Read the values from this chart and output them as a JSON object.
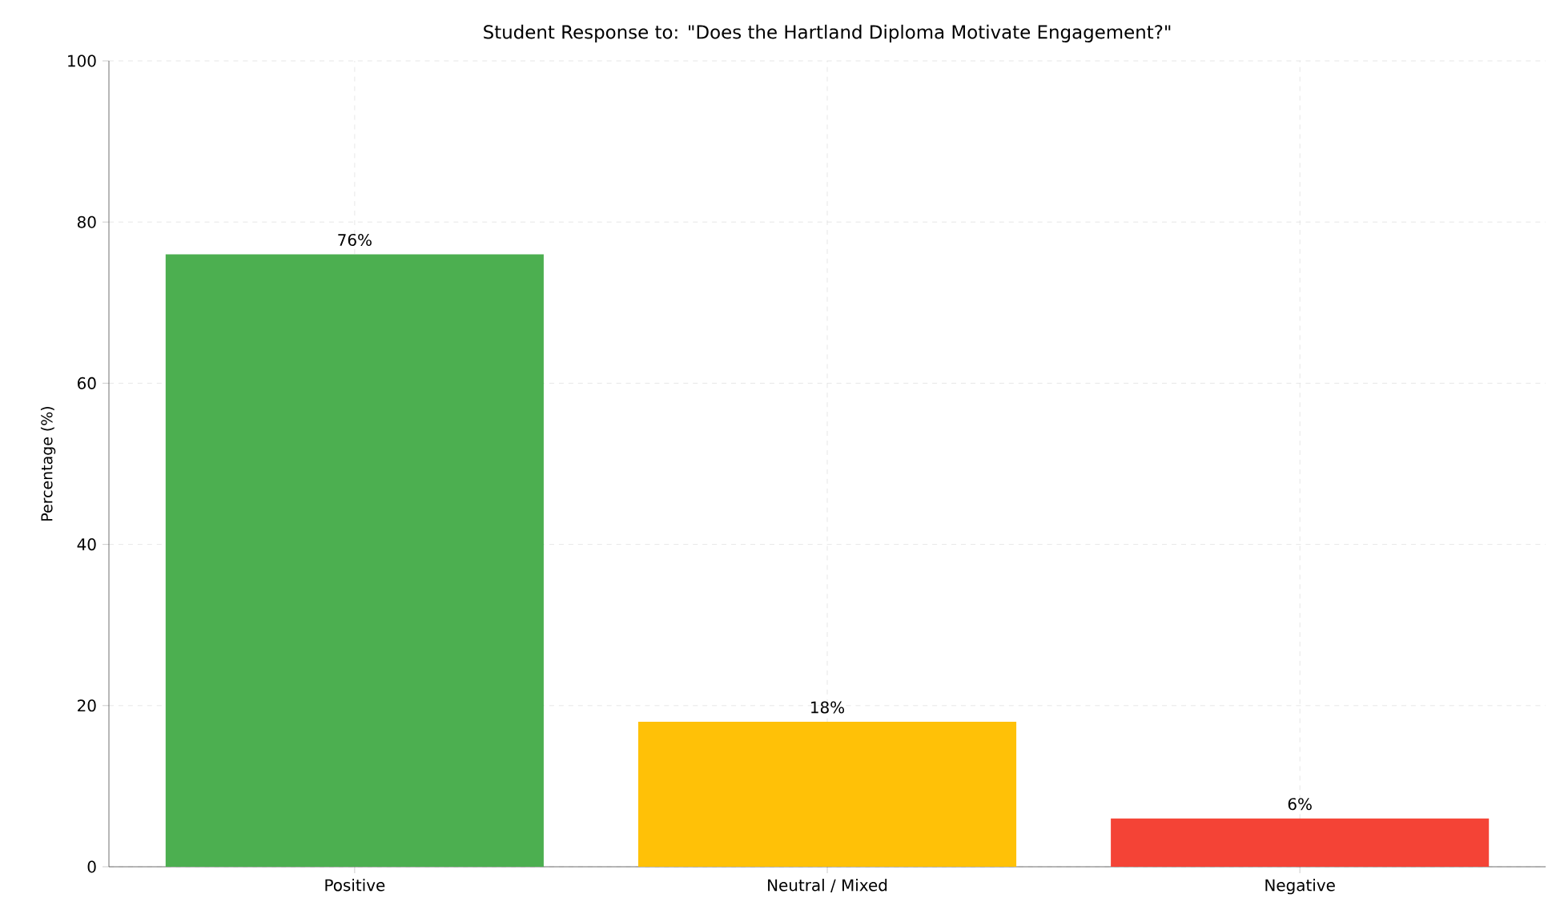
{
  "chart_data": {
    "type": "bar",
    "title": "Student Response to: \"Does the Hartland Diploma Motivate Engagement?\"",
    "ylabel": "Percentage (%)",
    "categories": [
      "Positive",
      "Neutral / Mixed",
      "Negative"
    ],
    "values": [
      76,
      18,
      6
    ],
    "colors": [
      "#4caf50",
      "#ffc107",
      "#f44336"
    ],
    "value_labels": [
      "76%",
      "18%",
      "6%"
    ],
    "ylim": [
      0,
      100
    ],
    "yticks": [
      0,
      20,
      40,
      60,
      80,
      100
    ],
    "grid": true
  }
}
